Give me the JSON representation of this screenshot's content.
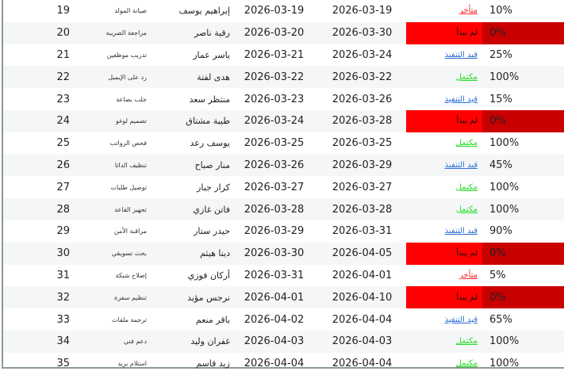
{
  "colors": {
    "late": "#ff2020",
    "in_progress": "#2b6fd6",
    "done": "#22dd22",
    "not_started_bg": "#ff0000",
    "not_started_pct_bg": "#c80000"
  },
  "rows": [
    {
      "num": "19",
      "task": "صيانة المولد",
      "name": "إبراهيم يوسف",
      "start": "2026-03-19",
      "end": "2026-03-19",
      "status": "متأخر",
      "type": "late",
      "pct": "10%"
    },
    {
      "num": "20",
      "task": "مراجعة الضريبة",
      "name": "رقية ناصر",
      "start": "2026-03-20",
      "end": "2026-03-30",
      "status": "لم يبدأ",
      "type": "ns",
      "pct": "0%"
    },
    {
      "num": "21",
      "task": "تدريب موظفين",
      "name": "ياسر عمار",
      "start": "2026-03-21",
      "end": "2026-03-24",
      "status": "قيد التنفيذ",
      "type": "prog",
      "pct": "25%"
    },
    {
      "num": "22",
      "task": "رد على الإيميل",
      "name": "هدى لفتة",
      "start": "2026-03-22",
      "end": "2026-03-22",
      "status": "مكتمل",
      "type": "done",
      "pct": "100%"
    },
    {
      "num": "23",
      "task": "جلب بضاعة",
      "name": "منتظر سعد",
      "start": "2026-03-23",
      "end": "2026-03-26",
      "status": "قيد التنفيذ",
      "type": "prog",
      "pct": "15%"
    },
    {
      "num": "24",
      "task": "تصميم لوغو",
      "name": "طيبة مشتاق",
      "start": "2026-03-24",
      "end": "2026-03-28",
      "status": "لم يبدأ",
      "type": "ns",
      "pct": "0%"
    },
    {
      "num": "25",
      "task": "فحص الرواتب",
      "name": "يوسف رعد",
      "start": "2026-03-25",
      "end": "2026-03-25",
      "status": "مكتمل",
      "type": "done",
      "pct": "100%"
    },
    {
      "num": "26",
      "task": "تنظيف الداتا",
      "name": "منار صباح",
      "start": "2026-03-26",
      "end": "2026-03-29",
      "status": "قيد التنفيذ",
      "type": "prog",
      "pct": "45%"
    },
    {
      "num": "27",
      "task": "توصيل طلبات",
      "name": "كرار جبار",
      "start": "2026-03-27",
      "end": "2026-03-27",
      "status": "مكتمل",
      "type": "done",
      "pct": "100%"
    },
    {
      "num": "28",
      "task": "تجهيز القاعة",
      "name": "فاتن غازي",
      "start": "2026-03-28",
      "end": "2026-03-28",
      "status": "مكتمل",
      "type": "done",
      "pct": "100%"
    },
    {
      "num": "29",
      "task": "مراقبة الأمن",
      "name": "حيدر ستار",
      "start": "2026-03-29",
      "end": "2026-03-31",
      "status": "قيد التنفيذ",
      "type": "prog",
      "pct": "90%"
    },
    {
      "num": "30",
      "task": "بحث تسويقي",
      "name": "دينا هيثم",
      "start": "2026-03-30",
      "end": "2026-04-05",
      "status": "لم يبدأ",
      "type": "ns",
      "pct": "0%"
    },
    {
      "num": "31",
      "task": "إصلاح شبكة",
      "name": "أركان فوزي",
      "start": "2026-03-31",
      "end": "2026-04-01",
      "status": "متأخر",
      "type": "late",
      "pct": "5%"
    },
    {
      "num": "32",
      "task": "تنظيم سفرة",
      "name": "نرجس مؤيد",
      "start": "2026-04-01",
      "end": "2026-04-10",
      "status": "لم يبدأ",
      "type": "ns",
      "pct": "0%"
    },
    {
      "num": "33",
      "task": "ترجمة ملفات",
      "name": "باقر منعم",
      "start": "2026-04-02",
      "end": "2026-04-04",
      "status": "قيد التنفيذ",
      "type": "prog",
      "pct": "65%"
    },
    {
      "num": "34",
      "task": "دعم فني",
      "name": "غفران وليد",
      "start": "2026-04-03",
      "end": "2026-04-03",
      "status": "مكتمل",
      "type": "done",
      "pct": "100%"
    },
    {
      "num": "35",
      "task": "استلام بريد",
      "name": "زيد قاسم",
      "start": "2026-04-04",
      "end": "2026-04-04",
      "status": "مكتمل",
      "type": "done",
      "pct": "100%"
    }
  ]
}
